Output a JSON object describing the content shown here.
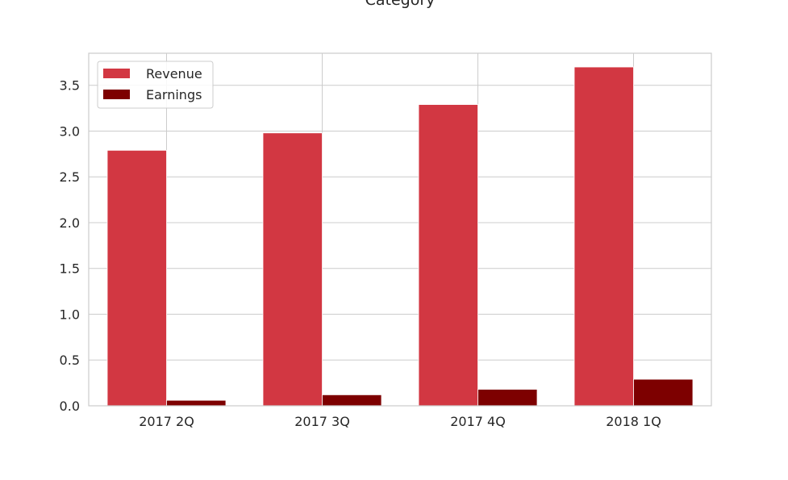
{
  "chart_data": {
    "type": "bar",
    "title": "Category",
    "xlabel": "",
    "ylabel": "",
    "categories": [
      "2017 2Q",
      "2017 3Q",
      "2017 4Q",
      "2018 1Q"
    ],
    "series": [
      {
        "name": "Revenue",
        "values": [
          2.79,
          2.98,
          3.29,
          3.7
        ],
        "color": "#d23742"
      },
      {
        "name": "Earnings",
        "values": [
          0.06,
          0.12,
          0.18,
          0.29
        ],
        "color": "#7d0000"
      }
    ],
    "ylim": [
      0,
      3.85
    ],
    "yticks": [
      0.0,
      0.5,
      1.0,
      1.5,
      2.0,
      2.5,
      3.0,
      3.5
    ],
    "ytick_labels": [
      "0.0",
      "0.5",
      "1.0",
      "1.5",
      "2.0",
      "2.5",
      "3.0",
      "3.5"
    ],
    "grid": true,
    "legend_position": "top-left",
    "colors": {
      "grid": "#cccccc",
      "axes_edge": "#cccccc",
      "text": "#262626"
    }
  }
}
